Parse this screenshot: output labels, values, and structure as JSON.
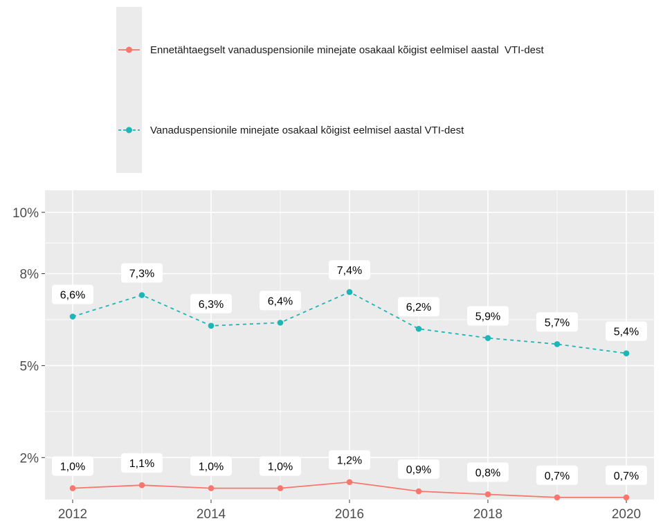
{
  "chart_data": {
    "type": "line",
    "x": [
      2012,
      2013,
      2014,
      2015,
      2016,
      2017,
      2018,
      2019,
      2020
    ],
    "series": [
      {
        "name": "Ennetähtaegselt vanaduspensionile minejate osakaal kõigist eelmisel aastal  VTI-dest",
        "color": "#f8766d",
        "style": "solid",
        "values": [
          1.0,
          1.1,
          1.0,
          1.0,
          1.2,
          0.9,
          0.8,
          0.7,
          0.7
        ],
        "point_labels": [
          "1,0%",
          "1,1%",
          "1,0%",
          "1,0%",
          "1,2%",
          "0,9%",
          "0,8%",
          "0,7%",
          "0,7%"
        ]
      },
      {
        "name": "Vanaduspensionile minejate osakaal kõigist eelmisel aastal VTI-dest",
        "color": "#1db5b5",
        "style": "dashed",
        "values": [
          6.6,
          7.3,
          6.3,
          6.4,
          7.4,
          6.2,
          5.9,
          5.7,
          5.4
        ],
        "point_labels": [
          "6,6%",
          "7,3%",
          "6,3%",
          "6,4%",
          "7,4%",
          "6,2%",
          "5,9%",
          "5,7%",
          "5,4%"
        ]
      }
    ],
    "x_ticks": [
      {
        "value": 2012,
        "label": "2012"
      },
      {
        "value": 2014,
        "label": "2014"
      },
      {
        "value": 2016,
        "label": "2016"
      },
      {
        "value": 2018,
        "label": "2018"
      },
      {
        "value": 2020,
        "label": "2020"
      }
    ],
    "y_ticks": [
      {
        "value": 2,
        "label": "2%"
      },
      {
        "value": 5,
        "label": "5%"
      },
      {
        "value": 8,
        "label": "8%"
      },
      {
        "value": 10,
        "label": "10%"
      }
    ],
    "x_minor": [
      2013,
      2015,
      2017,
      2019
    ],
    "y_minor": [
      3.5,
      6.5,
      9
    ],
    "xlim": [
      2011.6,
      2020.4
    ],
    "ylim": [
      0.63,
      10.72
    ],
    "panel_bg": "#ebebeb",
    "grid_color": "#ffffff",
    "axis_text_color": "#4d4d4d",
    "tick_color": "#333333",
    "label_bg": "#ffffff",
    "label_text_color": "#000000",
    "legend_position": "top-left",
    "grid": true
  }
}
